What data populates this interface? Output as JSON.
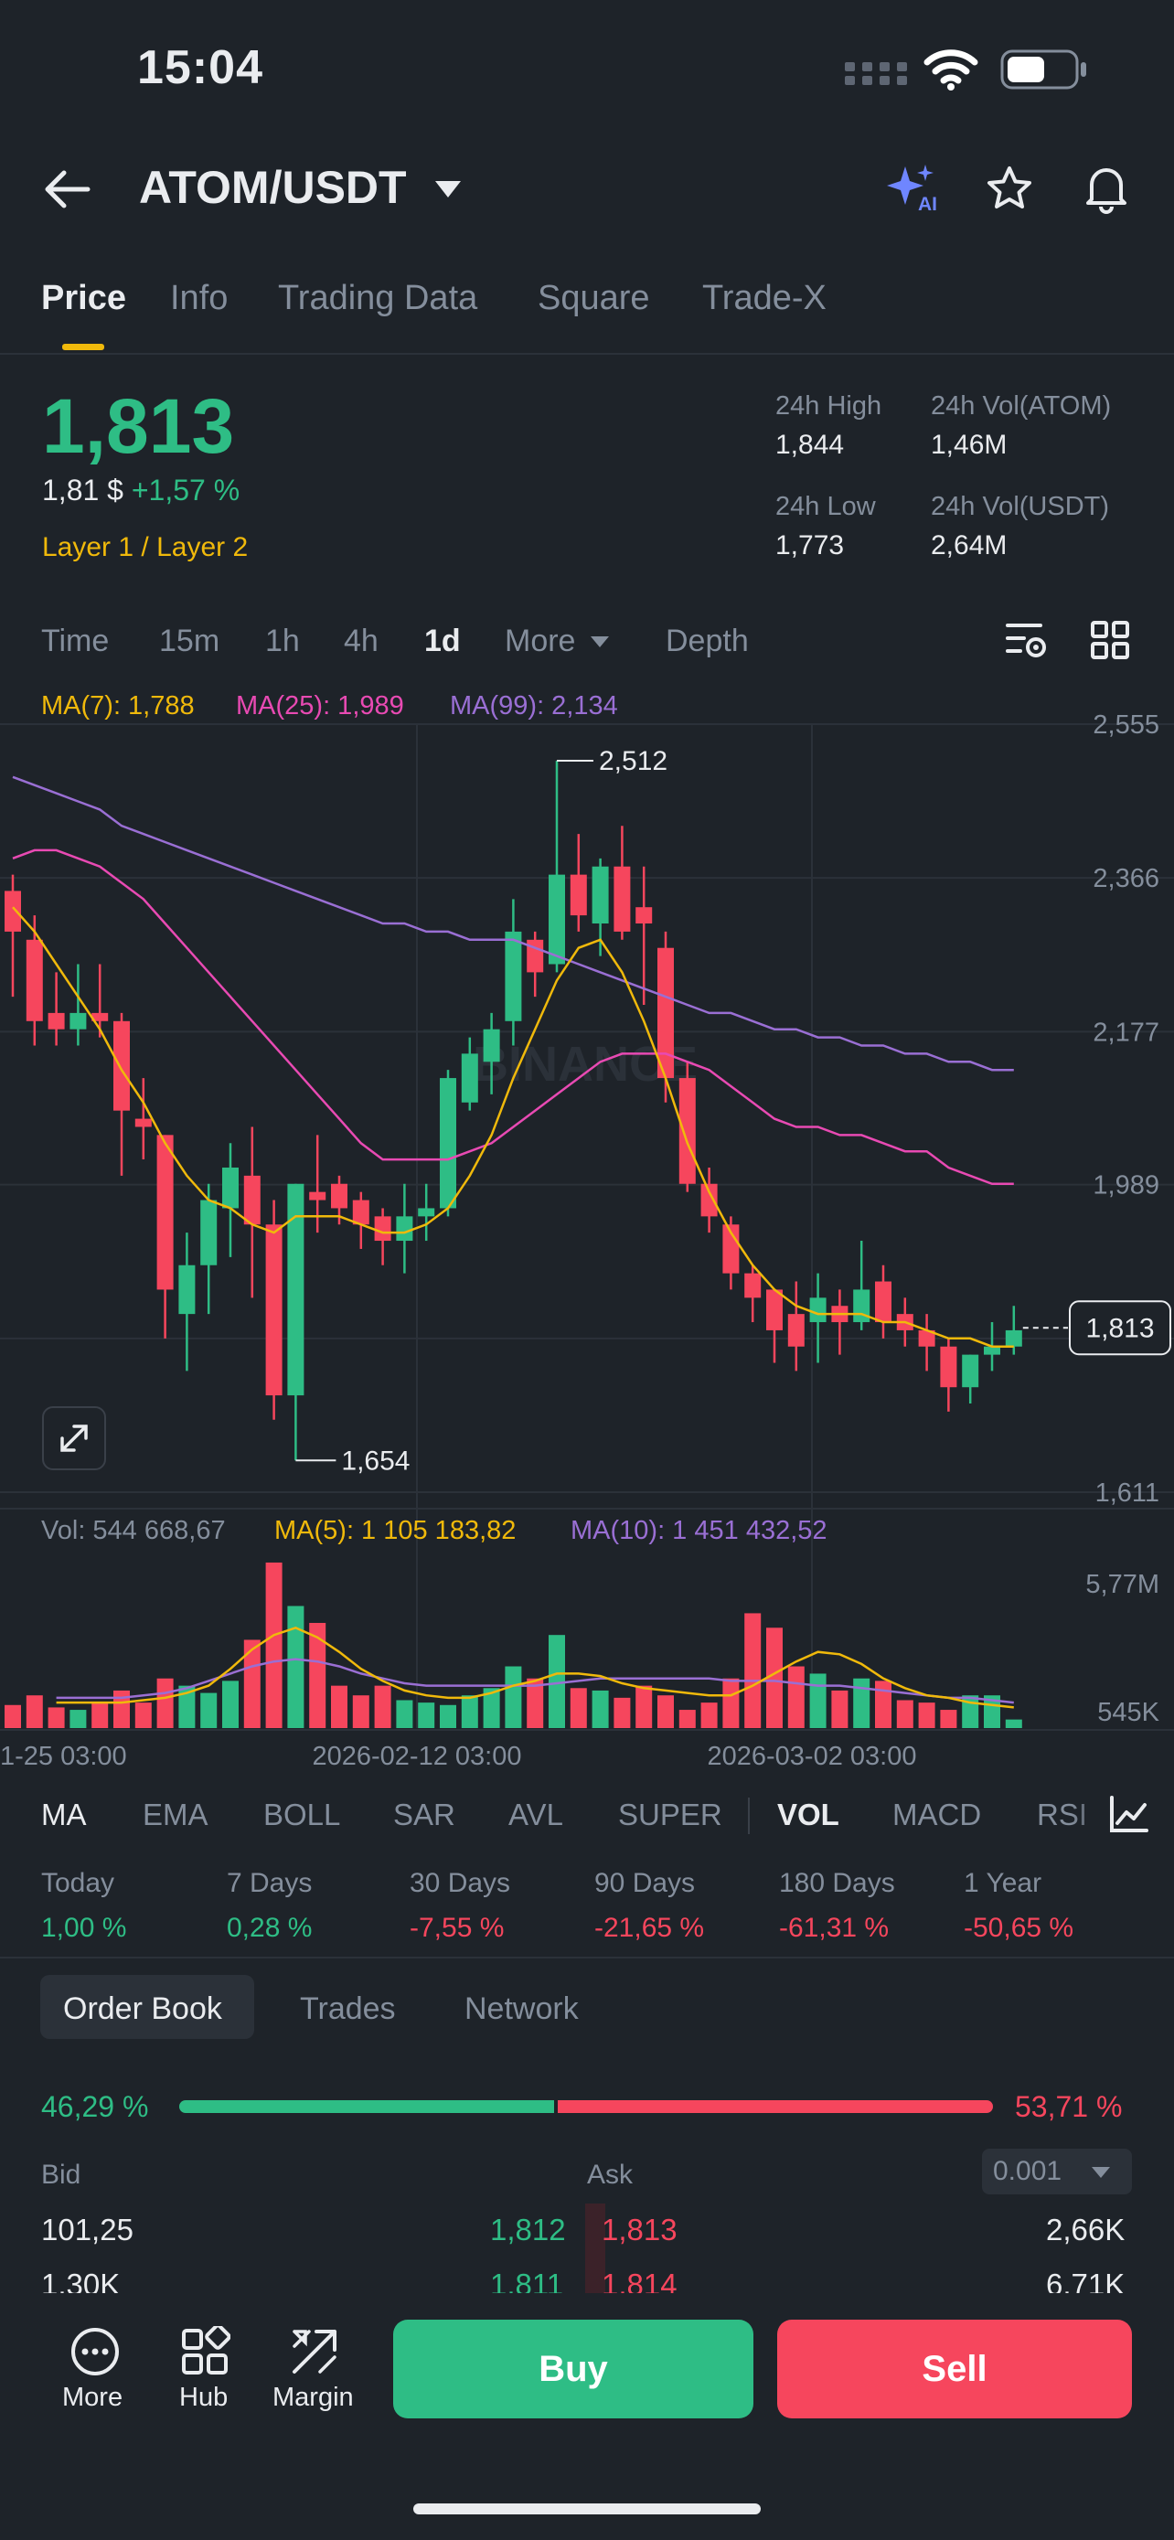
{
  "status_bar": {
    "time": "15:04"
  },
  "header": {
    "pair": "ATOM/USDT",
    "ai_badge": "AI"
  },
  "tabs": [
    {
      "label": "Price"
    },
    {
      "label": "Info"
    },
    {
      "label": "Trading Data"
    },
    {
      "label": "Square"
    },
    {
      "label": "Trade-X"
    }
  ],
  "price": {
    "last": "1,813",
    "fiat": "1,81 $",
    "change": "+1,57 %",
    "category": "Layer 1 / Layer 2",
    "high_label": "24h High",
    "high": "1,844",
    "low_label": "24h Low",
    "low": "1,773",
    "vol_atom_label": "24h Vol(ATOM)",
    "vol_atom": "1,46M",
    "vol_usdt_label": "24h Vol(USDT)",
    "vol_usdt": "2,64M"
  },
  "time_selector": [
    {
      "label": "Time"
    },
    {
      "label": "15m"
    },
    {
      "label": "1h"
    },
    {
      "label": "4h"
    },
    {
      "label": "1d"
    },
    {
      "label": "More"
    },
    {
      "label": "Depth"
    }
  ],
  "ma_legend": {
    "ma7": "MA(7): 1,788",
    "ma25": "MA(25): 1,989",
    "ma99": "MA(99): 2,134"
  },
  "chart_data": {
    "type": "candlestick",
    "watermark": "BINANCE",
    "y_ticks": [
      "2,555",
      "2,366",
      "2,177",
      "1,989",
      "1,611"
    ],
    "ylim": [
      1.611,
      2.555
    ],
    "current_price": "1,813",
    "high_marker": "2,512",
    "low_marker": "1,654",
    "x_ticks": [
      "1-25 03:00",
      "2026-02-12 03:00",
      "2026-03-02 03:00"
    ],
    "candles": [
      [
        2.35,
        2.3,
        2.37,
        2.22
      ],
      [
        2.29,
        2.19,
        2.32,
        2.16
      ],
      [
        2.2,
        2.18,
        2.25,
        2.16
      ],
      [
        2.18,
        2.2,
        2.26,
        2.16
      ],
      [
        2.2,
        2.19,
        2.26,
        2.17
      ],
      [
        2.19,
        2.08,
        2.2,
        2.0
      ],
      [
        2.07,
        2.06,
        2.12,
        2.02
      ],
      [
        2.05,
        1.86,
        2.05,
        1.8
      ],
      [
        1.83,
        1.89,
        1.93,
        1.76
      ],
      [
        1.89,
        1.97,
        1.99,
        1.83
      ],
      [
        1.96,
        2.01,
        2.04,
        1.9
      ],
      [
        2.0,
        1.94,
        2.06,
        1.85
      ],
      [
        1.94,
        1.73,
        1.97,
        1.7
      ],
      [
        1.73,
        1.99,
        1.99,
        1.65
      ],
      [
        1.98,
        1.97,
        2.05,
        1.93
      ],
      [
        1.99,
        1.96,
        2.0,
        1.94
      ],
      [
        1.97,
        1.94,
        1.98,
        1.91
      ],
      [
        1.95,
        1.92,
        1.96,
        1.89
      ],
      [
        1.92,
        1.95,
        1.99,
        1.88
      ],
      [
        1.95,
        1.96,
        1.99,
        1.92
      ],
      [
        1.96,
        2.12,
        2.13,
        1.95
      ],
      [
        2.09,
        2.15,
        2.17,
        2.08
      ],
      [
        2.14,
        2.18,
        2.2,
        2.1
      ],
      [
        2.19,
        2.3,
        2.34,
        2.16
      ],
      [
        2.29,
        2.25,
        2.3,
        2.22
      ],
      [
        2.26,
        2.37,
        2.51,
        2.25
      ],
      [
        2.37,
        2.32,
        2.42,
        2.3
      ],
      [
        2.31,
        2.38,
        2.39,
        2.27
      ],
      [
        2.38,
        2.3,
        2.43,
        2.29
      ],
      [
        2.33,
        2.31,
        2.38,
        2.21
      ],
      [
        2.28,
        2.12,
        2.3,
        2.09
      ],
      [
        2.12,
        1.99,
        2.14,
        1.98
      ],
      [
        1.99,
        1.95,
        2.01,
        1.93
      ],
      [
        1.94,
        1.88,
        1.95,
        1.86
      ],
      [
        1.88,
        1.85,
        1.89,
        1.82
      ],
      [
        1.86,
        1.81,
        1.86,
        1.77
      ],
      [
        1.83,
        1.79,
        1.87,
        1.76
      ],
      [
        1.82,
        1.85,
        1.88,
        1.77
      ],
      [
        1.84,
        1.82,
        1.86,
        1.78
      ],
      [
        1.82,
        1.86,
        1.92,
        1.81
      ],
      [
        1.87,
        1.82,
        1.89,
        1.8
      ],
      [
        1.83,
        1.81,
        1.85,
        1.79
      ],
      [
        1.81,
        1.79,
        1.83,
        1.76
      ],
      [
        1.79,
        1.74,
        1.8,
        1.71
      ],
      [
        1.74,
        1.78,
        1.78,
        1.72
      ],
      [
        1.78,
        1.79,
        1.82,
        1.76
      ],
      [
        1.79,
        1.81,
        1.84,
        1.78
      ]
    ],
    "ma7": [
      2.33,
      2.3,
      2.26,
      2.22,
      2.18,
      2.13,
      2.09,
      2.04,
      2.0,
      1.97,
      1.96,
      1.94,
      1.93,
      1.95,
      1.95,
      1.95,
      1.94,
      1.93,
      1.93,
      1.94,
      1.96,
      2.0,
      2.05,
      2.12,
      2.18,
      2.24,
      2.28,
      2.29,
      2.25,
      2.19,
      2.12,
      2.04,
      1.98,
      1.93,
      1.89,
      1.86,
      1.84,
      1.83,
      1.83,
      1.83,
      1.82,
      1.82,
      1.81,
      1.8,
      1.8,
      1.79,
      1.79
    ],
    "ma25": [
      2.39,
      2.4,
      2.4,
      2.39,
      2.38,
      2.36,
      2.34,
      2.31,
      2.28,
      2.25,
      2.22,
      2.19,
      2.16,
      2.13,
      2.1,
      2.07,
      2.04,
      2.02,
      2.02,
      2.02,
      2.02,
      2.03,
      2.04,
      2.06,
      2.08,
      2.1,
      2.12,
      2.14,
      2.15,
      2.15,
      2.15,
      2.14,
      2.13,
      2.11,
      2.09,
      2.07,
      2.06,
      2.06,
      2.05,
      2.05,
      2.04,
      2.03,
      2.03,
      2.01,
      2.0,
      1.99,
      1.99
    ],
    "ma99": [
      2.49,
      2.48,
      2.47,
      2.46,
      2.45,
      2.43,
      2.42,
      2.41,
      2.4,
      2.39,
      2.38,
      2.37,
      2.36,
      2.35,
      2.34,
      2.33,
      2.32,
      2.31,
      2.31,
      2.3,
      2.3,
      2.29,
      2.29,
      2.29,
      2.28,
      2.27,
      2.26,
      2.25,
      2.24,
      2.23,
      2.22,
      2.21,
      2.2,
      2.2,
      2.19,
      2.18,
      2.18,
      2.17,
      2.17,
      2.16,
      2.16,
      2.15,
      2.15,
      2.14,
      2.14,
      2.13,
      2.13
    ],
    "volume": {
      "label": "Vol: 544 668,67",
      "ma5_label": "MA(5): 1 105 183,82",
      "ma10_label": "MA(10): 1 451 432,52",
      "y_ticks": [
        "5,77M",
        "545K"
      ],
      "ylim": [
        0.545,
        5.77
      ],
      "bars": [
        1.5,
        1.9,
        1.4,
        1.3,
        1.6,
        2.1,
        1.6,
        2.6,
        2.3,
        2.0,
        2.5,
        4.2,
        7.4,
        5.6,
        4.9,
        2.3,
        1.9,
        2.3,
        1.7,
        1.6,
        1.5,
        1.9,
        2.2,
        3.1,
        2.6,
        4.4,
        2.2,
        2.1,
        1.8,
        2.3,
        1.9,
        1.3,
        1.6,
        2.6,
        5.3,
        4.7,
        3.1,
        2.8,
        2.1,
        2.6,
        2.5,
        1.7,
        1.6,
        1.3,
        1.9,
        1.9,
        0.9
      ],
      "ma5": [
        1.6,
        1.6,
        1.6,
        1.6,
        1.7,
        1.8,
        2.0,
        2.3,
        3.0,
        3.8,
        4.4,
        4.7,
        4.3,
        3.7,
        3.0,
        2.5,
        2.1,
        1.9,
        1.8,
        1.8,
        2.0,
        2.3,
        2.5,
        2.8,
        2.8,
        2.7,
        2.4,
        2.2,
        2.1,
        2.0,
        1.9,
        1.9,
        2.3,
        2.8,
        3.3,
        3.7,
        3.6,
        3.2,
        2.6,
        2.2,
        1.9,
        1.8,
        1.6,
        1.5,
        1.4
      ],
      "ma10": [
        1.8,
        1.8,
        1.8,
        1.8,
        1.9,
        2.0,
        2.2,
        2.5,
        2.8,
        3.1,
        3.3,
        3.4,
        3.3,
        3.1,
        2.8,
        2.6,
        2.4,
        2.3,
        2.3,
        2.3,
        2.3,
        2.3,
        2.3,
        2.4,
        2.5,
        2.6,
        2.6,
        2.6,
        2.6,
        2.6,
        2.6,
        2.5,
        2.5,
        2.5,
        2.4,
        2.3,
        2.3,
        2.2,
        2.1,
        2.0,
        1.9,
        1.8,
        1.8,
        1.7,
        1.6
      ]
    }
  },
  "indicators": [
    {
      "label": "MA"
    },
    {
      "label": "EMA"
    },
    {
      "label": "BOLL"
    },
    {
      "label": "SAR"
    },
    {
      "label": "AVL"
    },
    {
      "label": "SUPER"
    },
    {
      "label": "VOL"
    },
    {
      "label": "MACD"
    },
    {
      "label": "RSI"
    }
  ],
  "performance": [
    {
      "label": "Today",
      "value": "1,00 %"
    },
    {
      "label": "7 Days",
      "value": "0,28 %"
    },
    {
      "label": "30 Days",
      "value": "-7,55 %"
    },
    {
      "label": "90 Days",
      "value": "-21,65 %"
    },
    {
      "label": "180 Days",
      "value": "-61,31 %"
    },
    {
      "label": "1 Year",
      "value": "-50,65 %"
    }
  ],
  "order_book": {
    "tabs": [
      {
        "label": "Order Book"
      },
      {
        "label": "Trades"
      },
      {
        "label": "Network"
      }
    ],
    "bid_ratio": "46,29 %",
    "ask_ratio": "53,71 %",
    "bid_fraction": 0.4629,
    "bid_label": "Bid",
    "ask_label": "Ask",
    "precision": "0.001",
    "rows": [
      {
        "bid_qty": "101,25",
        "bid_price": "1,812",
        "ask_price": "1,813",
        "ask_qty": "2,66K"
      },
      {
        "bid_qty": "1,30K",
        "bid_price": "1,811",
        "ask_price": "1,814",
        "ask_qty": "6,71K"
      }
    ]
  },
  "bottom_bar": {
    "more": "More",
    "hub": "Hub",
    "margin": "Margin",
    "buy": "Buy",
    "sell": "Sell"
  },
  "colors": {
    "up": "#2ebd85",
    "down": "#f6465d",
    "ma7": "#f0b90b",
    "ma25": "#e84ab3",
    "ma99": "#9a6fd4",
    "accent": "#f0b90b"
  }
}
